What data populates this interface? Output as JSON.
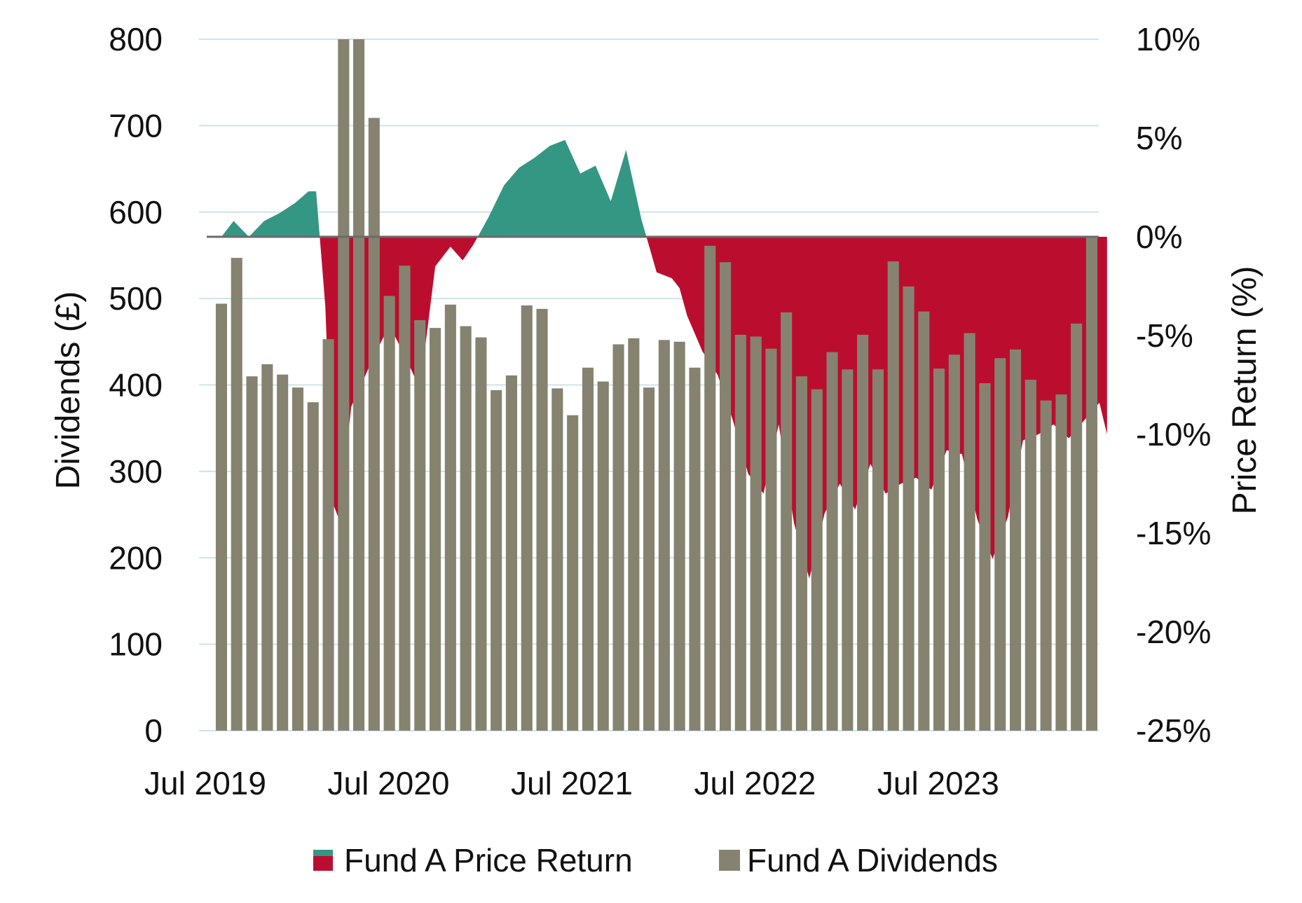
{
  "colors": {
    "dividends": "#858370",
    "positive_return": "#349784",
    "negative_return": "#BB0E2F",
    "zero_line": "#6b6b6b",
    "grid": "#cfe3ea",
    "text": "#111111"
  },
  "chart_data": {
    "type": "bar",
    "x_tick_labels": [
      "Jul 2019",
      "Jul 2020",
      "Jul 2021",
      "Jul 2022",
      "Jul 2023"
    ],
    "y_left_label": "Dividends (£)",
    "y_right_label": "Price Return (%)",
    "y_left_ticks": [
      "0",
      "100",
      "200",
      "300",
      "400",
      "500",
      "600",
      "700",
      "800"
    ],
    "y_right_ticks": [
      "-25%",
      "-20%",
      "-15%",
      "-10%",
      "-5%",
      "0%",
      "5%",
      "10%"
    ],
    "ylim_left": [
      0,
      800
    ],
    "ylim_right": [
      -25,
      10
    ],
    "grid": true,
    "legend_position": "bottom",
    "legend": [
      "Fund A Price Return",
      "Fund A Dividends"
    ],
    "series": [
      {
        "name": "Fund A Dividends",
        "type": "bar",
        "axis": "left",
        "start": "Jul 2019",
        "frequency": "monthly",
        "values": [
          494,
          547,
          410,
          424,
          412,
          397,
          380,
          453,
          800,
          800,
          709,
          503,
          538,
          475,
          466,
          493,
          468,
          455,
          394,
          411,
          492,
          488,
          396,
          365,
          420,
          404,
          447,
          454,
          397,
          452,
          450,
          420,
          561,
          542,
          458,
          456,
          442,
          484,
          410,
          395,
          438,
          418,
          458,
          418,
          543,
          514,
          485,
          419,
          435,
          460,
          402,
          431,
          441,
          406,
          382,
          389,
          471,
          571
        ]
      },
      {
        "name": "Fund A Price Return",
        "type": "area",
        "axis": "right",
        "unit": "%",
        "x": [
          0,
          0.8,
          1.8,
          2.8,
          3.8,
          4.8,
          5.7,
          6.2,
          6.8,
          7.3,
          7.7,
          8.0,
          8.5,
          9.1,
          10.0,
          11.0,
          12.0,
          13.0,
          14.0,
          15.0,
          15.8,
          16.5,
          17.5,
          18.5,
          19.5,
          20.5,
          21.5,
          22.5,
          23.5,
          24.5,
          25.5,
          26.5,
          27.5,
          28.5,
          29.5,
          30.0,
          30.5,
          31.5,
          32.5,
          33.5,
          34.5,
          35.5,
          36.5,
          37.5,
          38.5,
          39.5,
          40.5,
          41.5,
          42.5,
          43.5,
          44.5,
          45.5,
          46.5,
          47.5,
          48.5,
          49.5,
          50.5,
          51.5,
          52.5,
          53.5,
          54.5,
          55.5,
          56.5,
          57.5,
          58.0
        ],
        "values": [
          0,
          0.8,
          0,
          0.8,
          1.2,
          1.7,
          2.3,
          2.3,
          -3.5,
          -13.5,
          -14.3,
          -12.2,
          -8.6,
          -7.6,
          -6.0,
          -4.5,
          -6.0,
          -7.7,
          -1.5,
          -0.5,
          -1.2,
          -0.4,
          1.0,
          2.6,
          3.5,
          4.0,
          4.6,
          4.9,
          3.2,
          3.6,
          1.8,
          4.4,
          0.9,
          -1.8,
          -2.1,
          -2.6,
          -4.0,
          -5.8,
          -7.0,
          -9.3,
          -12.0,
          -13.0,
          -9.5,
          -14.5,
          -17.3,
          -14.0,
          -12.5,
          -13.8,
          -11.5,
          -13.0,
          -12.5,
          -12.2,
          -12.8,
          -10.8,
          -11.0,
          -14.3,
          -16.3,
          -14.2,
          -10.3,
          -10.0,
          -9.5,
          -10.2,
          -9.3,
          -8.4,
          -10.0
        ]
      }
    ]
  }
}
